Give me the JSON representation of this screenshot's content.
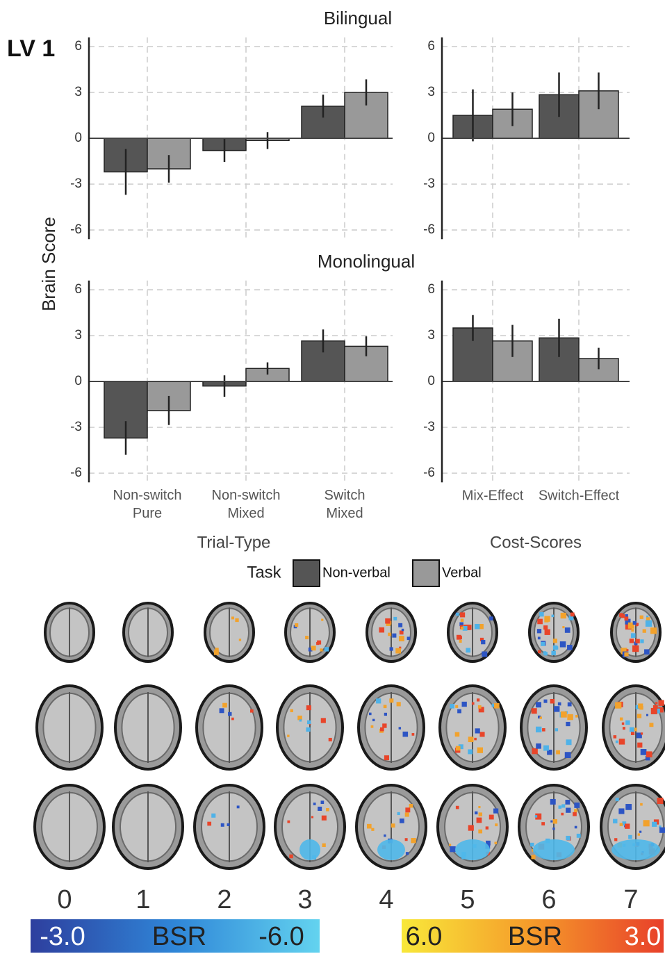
{
  "label": "LV 1",
  "y_axis_label": "Brain Score",
  "chart_data": [
    {
      "type": "bar",
      "title": "Bilingual",
      "categories": [
        null,
        null,
        null
      ],
      "series": [
        {
          "name": "Non-verbal",
          "color": "#555555",
          "values": [
            -2.2,
            -0.8,
            2.1
          ],
          "errors": [
            1.5,
            0.75,
            0.75
          ]
        },
        {
          "name": "Verbal",
          "color": "#999999",
          "values": [
            -2.0,
            -0.15,
            3.0
          ],
          "errors": [
            0.9,
            0.55,
            0.85
          ]
        }
      ],
      "ylim": [
        -6.6,
        6.6
      ],
      "yticks": [
        -6,
        -3,
        0,
        3,
        6
      ],
      "grid": true
    },
    {
      "type": "bar",
      "categories": [
        null,
        null
      ],
      "series": [
        {
          "name": "Non-verbal",
          "color": "#555555",
          "values": [
            1.5,
            2.85
          ],
          "errors": [
            1.7,
            1.45
          ]
        },
        {
          "name": "Verbal",
          "color": "#999999",
          "values": [
            1.9,
            3.1
          ],
          "errors": [
            1.1,
            1.2
          ]
        }
      ],
      "ylim": [
        -6.6,
        6.6
      ],
      "yticks": [
        -6,
        -3,
        0,
        3,
        6
      ],
      "grid": true
    },
    {
      "type": "bar",
      "title": "Monolingual",
      "x_axis_label": "Trial-Type",
      "categories": [
        "Non-switch Pure",
        "Non-switch Mixed",
        "Switch Mixed"
      ],
      "series": [
        {
          "name": "Non-verbal",
          "color": "#555555",
          "values": [
            -3.7,
            -0.3,
            2.65
          ],
          "errors": [
            1.1,
            0.7,
            0.75
          ]
        },
        {
          "name": "Verbal",
          "color": "#999999",
          "values": [
            -1.9,
            0.85,
            2.3
          ],
          "errors": [
            0.95,
            0.4,
            0.65
          ]
        }
      ],
      "ylim": [
        -6.6,
        6.6
      ],
      "yticks": [
        -6,
        -3,
        0,
        3,
        6
      ],
      "grid": true
    },
    {
      "type": "bar",
      "x_axis_label": "Cost-Scores",
      "categories": [
        "Mix-Effect",
        "Switch-Effect"
      ],
      "series": [
        {
          "name": "Non-verbal",
          "color": "#555555",
          "values": [
            3.5,
            2.85
          ],
          "errors": [
            0.85,
            1.25
          ]
        },
        {
          "name": "Verbal",
          "color": "#999999",
          "values": [
            2.65,
            1.5
          ],
          "errors": [
            1.05,
            0.7
          ]
        }
      ],
      "ylim": [
        -6.6,
        6.6
      ],
      "yticks": [
        -6,
        -3,
        0,
        3,
        6
      ],
      "grid": true
    }
  ],
  "legend": {
    "title": "Task"
  },
  "slices": [
    0,
    1,
    2,
    3,
    4,
    5,
    6,
    7
  ],
  "colorbars": [
    {
      "labels": [
        "-3.0",
        "BSR",
        "-6.0"
      ]
    },
    {
      "labels": [
        "6.0",
        "BSR",
        "3.0"
      ]
    }
  ]
}
